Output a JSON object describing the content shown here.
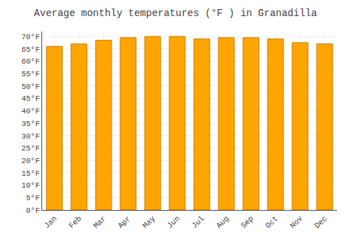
{
  "chart_data": {
    "type": "bar",
    "title": "Average monthly temperatures (°F ) in Granadilla",
    "categories": [
      "Jan",
      "Feb",
      "Mar",
      "Apr",
      "May",
      "Jun",
      "Jul",
      "Aug",
      "Sep",
      "Oct",
      "Nov",
      "Dec"
    ],
    "values": [
      66,
      67,
      68.5,
      69.5,
      70,
      70,
      69,
      69.5,
      69.5,
      69,
      67.5,
      67
    ],
    "color": "#FFA500",
    "ylim": [
      0,
      72
    ],
    "yticks": [
      {
        "value": 0,
        "label": "0°F"
      },
      {
        "value": 5,
        "label": "5°F"
      },
      {
        "value": 10,
        "label": "10°F"
      },
      {
        "value": 15,
        "label": "15°F"
      },
      {
        "value": 20,
        "label": "20°F"
      },
      {
        "value": 25,
        "label": "25°F"
      },
      {
        "value": 30,
        "label": "30°F"
      },
      {
        "value": 35,
        "label": "35°F"
      },
      {
        "value": 40,
        "label": "40°F"
      },
      {
        "value": 45,
        "label": "45°F"
      },
      {
        "value": 50,
        "label": "50°F"
      },
      {
        "value": 55,
        "label": "55°F"
      },
      {
        "value": 60,
        "label": "60°F"
      },
      {
        "value": 65,
        "label": "65°F"
      },
      {
        "value": 70,
        "label": "70°F"
      }
    ],
    "grid": true
  }
}
